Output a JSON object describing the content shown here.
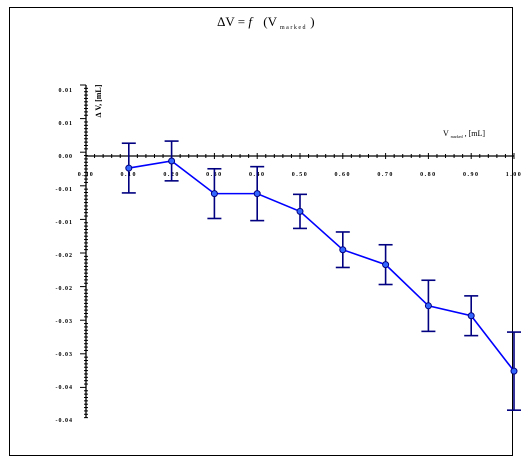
{
  "chart_data": {
    "type": "line",
    "title": {
      "prefix": "∆V = ",
      "func": "f",
      "main": "(V",
      "sub": "marked",
      "suffix": ")"
    },
    "xlabel": {
      "main": "V",
      "sub": "marked",
      "suffix": ", [mL]"
    },
    "ylabel": "∆ V, [mL]",
    "x_ticks": [
      "0.00",
      "0.10",
      "0.20",
      "0.30",
      "0.40",
      "0.50",
      "0.60",
      "0.70",
      "0.80",
      "0.90",
      "1.00"
    ],
    "y_ticks": [
      "0.01",
      "0.01",
      "0.00",
      "-0.01",
      "-0.01",
      "-0.02",
      "-0.02",
      "-0.03",
      "-0.03",
      "-0.04",
      "-0.04"
    ],
    "xlim": [
      0.0,
      1.0
    ],
    "ylim": [
      -0.0425,
      0.01
    ],
    "grid": false,
    "series": [
      {
        "color": "#0000ff",
        "marker_fill": "#3366ff",
        "errorbar_color": "#000080",
        "x": [
          0.1,
          0.2,
          0.3,
          0.4,
          0.5,
          0.6,
          0.7,
          0.8,
          0.9,
          1.0
        ],
        "y": [
          -0.0017,
          -0.0007,
          -0.0053,
          -0.0053,
          -0.0078,
          -0.0132,
          -0.0153,
          -0.0211,
          -0.0225,
          -0.0303
        ],
        "err": [
          0.0035,
          0.0028,
          0.0035,
          0.0038,
          0.0024,
          0.0025,
          0.0028,
          0.0036,
          0.0028,
          0.0055
        ]
      }
    ]
  }
}
